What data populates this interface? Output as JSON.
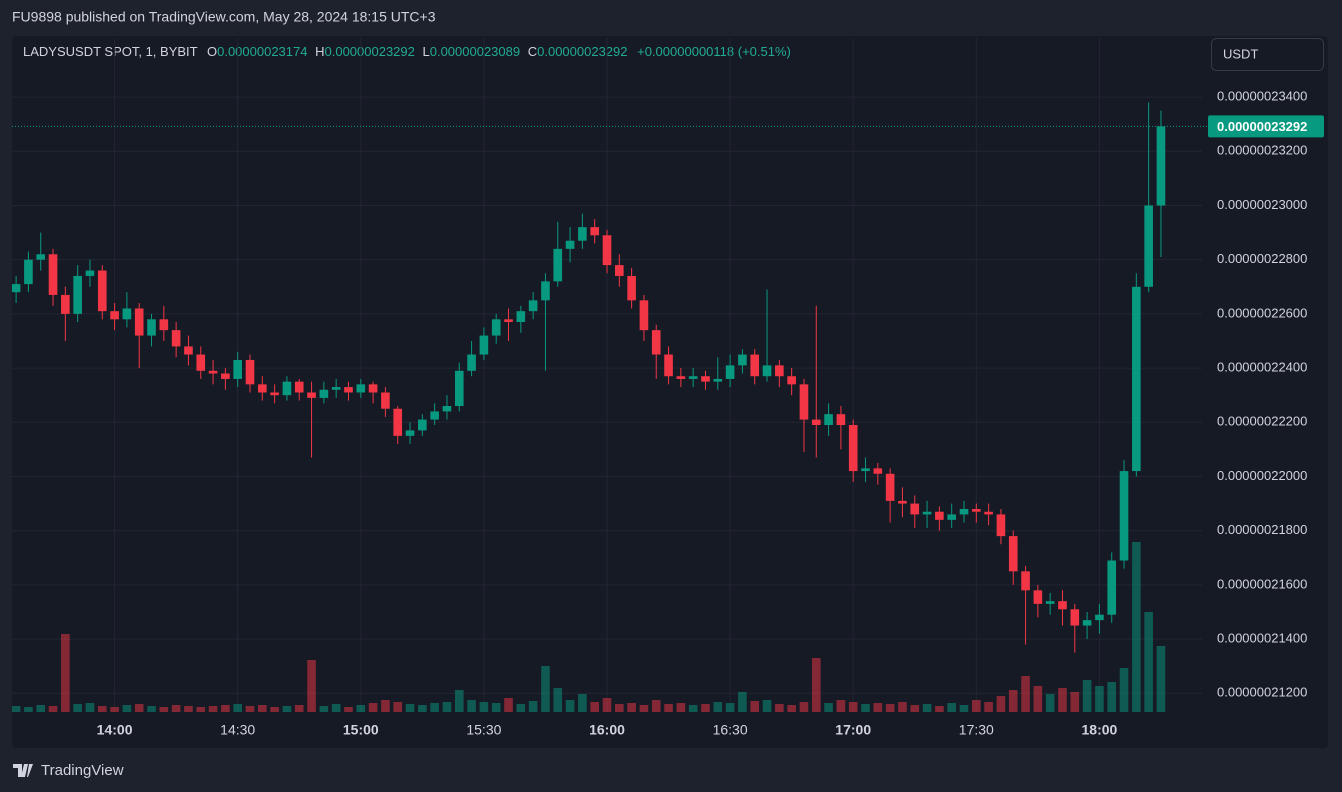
{
  "header": "FU9898 published on TradingView.com, May 28, 2024 18:15 UTC+3",
  "currency": "USDT",
  "brand": "TradingView",
  "chart_data": {
    "type": "candlestick",
    "title": "LADYSUSDT SPOT, 1, BYBIT",
    "ohlc_legend": [
      {
        "key": "O",
        "text": "0.00000023174"
      },
      {
        "key": "H",
        "text": "0.00000023292"
      },
      {
        "key": "L",
        "text": "0.00000023089"
      },
      {
        "key": "C",
        "text": "0.00000023292"
      }
    ],
    "change": "+0.00000000118 (+0.51%)",
    "up_color": "#089981",
    "down_color": "#f23645",
    "grid": true,
    "last_price": {
      "value": 2.3292e-07,
      "label": "0.00000023292"
    },
    "xlim": [
      815,
      1105
    ],
    "xticks": [
      {
        "value": 840,
        "label": "14:00"
      },
      {
        "value": 870,
        "label": "14:30"
      },
      {
        "value": 900,
        "label": "15:00"
      },
      {
        "value": 930,
        "label": "15:30"
      },
      {
        "value": 960,
        "label": "16:00"
      },
      {
        "value": 990,
        "label": "16:30"
      },
      {
        "value": 1020,
        "label": "17:00"
      },
      {
        "value": 1050,
        "label": "17:30"
      },
      {
        "value": 1080,
        "label": "18:00"
      }
    ],
    "ylim": [
      2.1131e-07,
      2.3618e-07
    ],
    "yticks": [
      {
        "value": 2.12e-07,
        "label": "0.00000021200"
      },
      {
        "value": 2.14e-07,
        "label": "0.00000021400"
      },
      {
        "value": 2.16e-07,
        "label": "0.00000021600"
      },
      {
        "value": 2.18e-07,
        "label": "0.00000021800"
      },
      {
        "value": 2.2e-07,
        "label": "0.00000022000"
      },
      {
        "value": 2.22e-07,
        "label": "0.00000022200"
      },
      {
        "value": 2.24e-07,
        "label": "0.00000022400"
      },
      {
        "value": 2.26e-07,
        "label": "0.00000022600"
      },
      {
        "value": 2.28e-07,
        "label": "0.00000022800"
      },
      {
        "value": 2.3e-07,
        "label": "0.00000023000"
      },
      {
        "value": 2.32e-07,
        "label": "0.00000023200"
      },
      {
        "value": 2.34e-07,
        "label": "0.00000023400"
      }
    ],
    "x": [
      816,
      819,
      822,
      825,
      828,
      831,
      834,
      837,
      840,
      843,
      846,
      849,
      852,
      855,
      858,
      861,
      864,
      867,
      870,
      873,
      876,
      879,
      882,
      885,
      888,
      891,
      894,
      897,
      900,
      903,
      906,
      909,
      912,
      915,
      918,
      921,
      924,
      927,
      930,
      933,
      936,
      939,
      942,
      945,
      948,
      951,
      954,
      957,
      960,
      963,
      966,
      969,
      972,
      975,
      978,
      981,
      984,
      987,
      990,
      993,
      996,
      999,
      1002,
      1005,
      1008,
      1011,
      1014,
      1017,
      1020,
      1023,
      1026,
      1029,
      1032,
      1035,
      1038,
      1041,
      1044,
      1047,
      1050,
      1053,
      1056,
      1059,
      1062,
      1065,
      1068,
      1071,
      1074,
      1077,
      1080,
      1083,
      1086,
      1089,
      1092,
      1095
    ],
    "open": [
      2.268e-07,
      2.271e-07,
      2.28e-07,
      2.282e-07,
      2.267e-07,
      2.26e-07,
      2.274e-07,
      2.276e-07,
      2.261e-07,
      2.258e-07,
      2.262e-07,
      2.252e-07,
      2.258e-07,
      2.254e-07,
      2.248e-07,
      2.245e-07,
      2.239e-07,
      2.238e-07,
      2.236e-07,
      2.243e-07,
      2.234e-07,
      2.231e-07,
      2.23e-07,
      2.235e-07,
      2.231e-07,
      2.229e-07,
      2.232e-07,
      2.233e-07,
      2.231e-07,
      2.234e-07,
      2.231e-07,
      2.225e-07,
      2.215e-07,
      2.217e-07,
      2.221e-07,
      2.224e-07,
      2.226e-07,
      2.239e-07,
      2.245e-07,
      2.252e-07,
      2.258e-07,
      2.257e-07,
      2.261e-07,
      2.265e-07,
      2.272e-07,
      2.284e-07,
      2.287e-07,
      2.292e-07,
      2.289e-07,
      2.278e-07,
      2.274e-07,
      2.265e-07,
      2.254e-07,
      2.245e-07,
      2.237e-07,
      2.236e-07,
      2.237e-07,
      2.235e-07,
      2.236e-07,
      2.241e-07,
      2.245e-07,
      2.237e-07,
      2.241e-07,
      2.237e-07,
      2.234e-07,
      2.221e-07,
      2.219e-07,
      2.223e-07,
      2.219e-07,
      2.202e-07,
      2.203e-07,
      2.201e-07,
      2.191e-07,
      2.19e-07,
      2.186e-07,
      2.187e-07,
      2.184e-07,
      2.186e-07,
      2.188e-07,
      2.187e-07,
      2.186e-07,
      2.178e-07,
      2.165e-07,
      2.158e-07,
      2.153e-07,
      2.154e-07,
      2.151e-07,
      2.145e-07,
      2.147e-07,
      2.149e-07,
      2.169e-07,
      2.202e-07,
      2.27e-07,
      2.3e-07
    ],
    "high": [
      2.274e-07,
      2.283e-07,
      2.29e-07,
      2.284e-07,
      2.27e-07,
      2.278e-07,
      2.28e-07,
      2.278e-07,
      2.264e-07,
      2.268e-07,
      2.264e-07,
      2.26e-07,
      2.263e-07,
      2.257e-07,
      2.252e-07,
      2.248e-07,
      2.243e-07,
      2.24e-07,
      2.246e-07,
      2.245e-07,
      2.237e-07,
      2.234e-07,
      2.237e-07,
      2.236e-07,
      2.235e-07,
      2.235e-07,
      2.236e-07,
      2.235e-07,
      2.236e-07,
      2.235e-07,
      2.233e-07,
      2.226e-07,
      2.22e-07,
      2.223e-07,
      2.227e-07,
      2.23e-07,
      2.242e-07,
      2.25e-07,
      2.255e-07,
      2.26e-07,
      2.262e-07,
      2.263e-07,
      2.268e-07,
      2.275e-07,
      2.294e-07,
      2.292e-07,
      2.297e-07,
      2.295e-07,
      2.291e-07,
      2.282e-07,
      2.277e-07,
      2.267e-07,
      2.256e-07,
      2.248e-07,
      2.24e-07,
      2.24e-07,
      2.239e-07,
      2.244e-07,
      2.245e-07,
      2.247e-07,
      2.247e-07,
      2.269e-07,
      2.243e-07,
      2.24e-07,
      2.236e-07,
      2.263e-07,
      2.227e-07,
      2.226e-07,
      2.221e-07,
      2.207e-07,
      2.205e-07,
      2.203e-07,
      2.196e-07,
      2.193e-07,
      2.191e-07,
      2.189e-07,
      2.19e-07,
      2.191e-07,
      2.19e-07,
      2.19e-07,
      2.188e-07,
      2.18e-07,
      2.167e-07,
      2.16e-07,
      2.157e-07,
      2.158e-07,
      2.153e-07,
      2.15e-07,
      2.153e-07,
      2.172e-07,
      2.206e-07,
      2.275e-07,
      2.338e-07,
      2.335e-07
    ],
    "low": [
      2.264e-07,
      2.268e-07,
      2.276e-07,
      2.263e-07,
      2.25e-07,
      2.257e-07,
      2.27e-07,
      2.258e-07,
      2.254e-07,
      2.255e-07,
      2.24e-07,
      2.248e-07,
      2.25e-07,
      2.244e-07,
      2.241e-07,
      2.236e-07,
      2.234e-07,
      2.232e-07,
      2.233e-07,
      2.231e-07,
      2.228e-07,
      2.227e-07,
      2.228e-07,
      2.228e-07,
      2.207e-07,
      2.227e-07,
      2.229e-07,
      2.228e-07,
      2.229e-07,
      2.227e-07,
      2.222e-07,
      2.212e-07,
      2.212e-07,
      2.215e-07,
      2.219e-07,
      2.221e-07,
      2.224e-07,
      2.237e-07,
      2.243e-07,
      2.249e-07,
      2.25e-07,
      2.253e-07,
      2.258e-07,
      2.239e-07,
      2.27e-07,
      2.279e-07,
      2.284e-07,
      2.286e-07,
      2.275e-07,
      2.27e-07,
      2.262e-07,
      2.25e-07,
      2.236e-07,
      2.234e-07,
      2.233e-07,
      2.233e-07,
      2.232e-07,
      2.232e-07,
      2.233e-07,
      2.238e-07,
      2.234e-07,
      2.235e-07,
      2.233e-07,
      2.23e-07,
      2.209e-07,
      2.207e-07,
      2.215e-07,
      2.21e-07,
      2.198e-07,
      2.198e-07,
      2.197e-07,
      2.183e-07,
      2.185e-07,
      2.181e-07,
      2.181e-07,
      2.18e-07,
      2.181e-07,
      2.183e-07,
      2.183e-07,
      2.182e-07,
      2.175e-07,
      2.16e-07,
      2.138e-07,
      2.148e-07,
      2.149e-07,
      2.145e-07,
      2.135e-07,
      2.14e-07,
      2.142e-07,
      2.146e-07,
      2.166e-07,
      2.2e-07,
      2.268e-07,
      2.281e-07
    ],
    "close": [
      2.271e-07,
      2.28e-07,
      2.282e-07,
      2.267e-07,
      2.26e-07,
      2.274e-07,
      2.276e-07,
      2.261e-07,
      2.258e-07,
      2.262e-07,
      2.252e-07,
      2.258e-07,
      2.254e-07,
      2.248e-07,
      2.245e-07,
      2.239e-07,
      2.238e-07,
      2.236e-07,
      2.243e-07,
      2.234e-07,
      2.231e-07,
      2.23e-07,
      2.235e-07,
      2.231e-07,
      2.229e-07,
      2.232e-07,
      2.233e-07,
      2.231e-07,
      2.234e-07,
      2.231e-07,
      2.225e-07,
      2.215e-07,
      2.217e-07,
      2.221e-07,
      2.224e-07,
      2.226e-07,
      2.239e-07,
      2.245e-07,
      2.252e-07,
      2.258e-07,
      2.257e-07,
      2.261e-07,
      2.265e-07,
      2.272e-07,
      2.284e-07,
      2.287e-07,
      2.292e-07,
      2.289e-07,
      2.278e-07,
      2.274e-07,
      2.265e-07,
      2.254e-07,
      2.245e-07,
      2.237e-07,
      2.236e-07,
      2.237e-07,
      2.235e-07,
      2.236e-07,
      2.241e-07,
      2.245e-07,
      2.237e-07,
      2.241e-07,
      2.237e-07,
      2.234e-07,
      2.221e-07,
      2.219e-07,
      2.223e-07,
      2.219e-07,
      2.202e-07,
      2.203e-07,
      2.201e-07,
      2.191e-07,
      2.19e-07,
      2.186e-07,
      2.187e-07,
      2.184e-07,
      2.186e-07,
      2.188e-07,
      2.187e-07,
      2.186e-07,
      2.178e-07,
      2.165e-07,
      2.158e-07,
      2.153e-07,
      2.154e-07,
      2.151e-07,
      2.145e-07,
      2.147e-07,
      2.149e-07,
      2.169e-07,
      2.202e-07,
      2.27e-07,
      2.3e-07,
      2.3292e-07
    ],
    "volume": [
      6,
      5,
      7,
      6,
      78,
      8,
      9,
      6,
      5,
      7,
      8,
      6,
      5,
      7,
      6,
      5,
      6,
      7,
      8,
      6,
      7,
      5,
      6,
      7,
      52,
      6,
      8,
      5,
      7,
      9,
      12,
      10,
      8,
      7,
      9,
      10,
      22,
      12,
      10,
      9,
      14,
      8,
      11,
      46,
      24,
      12,
      18,
      10,
      14,
      8,
      9,
      7,
      12,
      8,
      9,
      7,
      8,
      10,
      9,
      20,
      11,
      12,
      8,
      7,
      10,
      54,
      9,
      12,
      10,
      8,
      9,
      8,
      10,
      7,
      8,
      6,
      9,
      7,
      12,
      10,
      16,
      22,
      36,
      26,
      18,
      24,
      20,
      32,
      26,
      30,
      44,
      170,
      100,
      66
    ]
  }
}
